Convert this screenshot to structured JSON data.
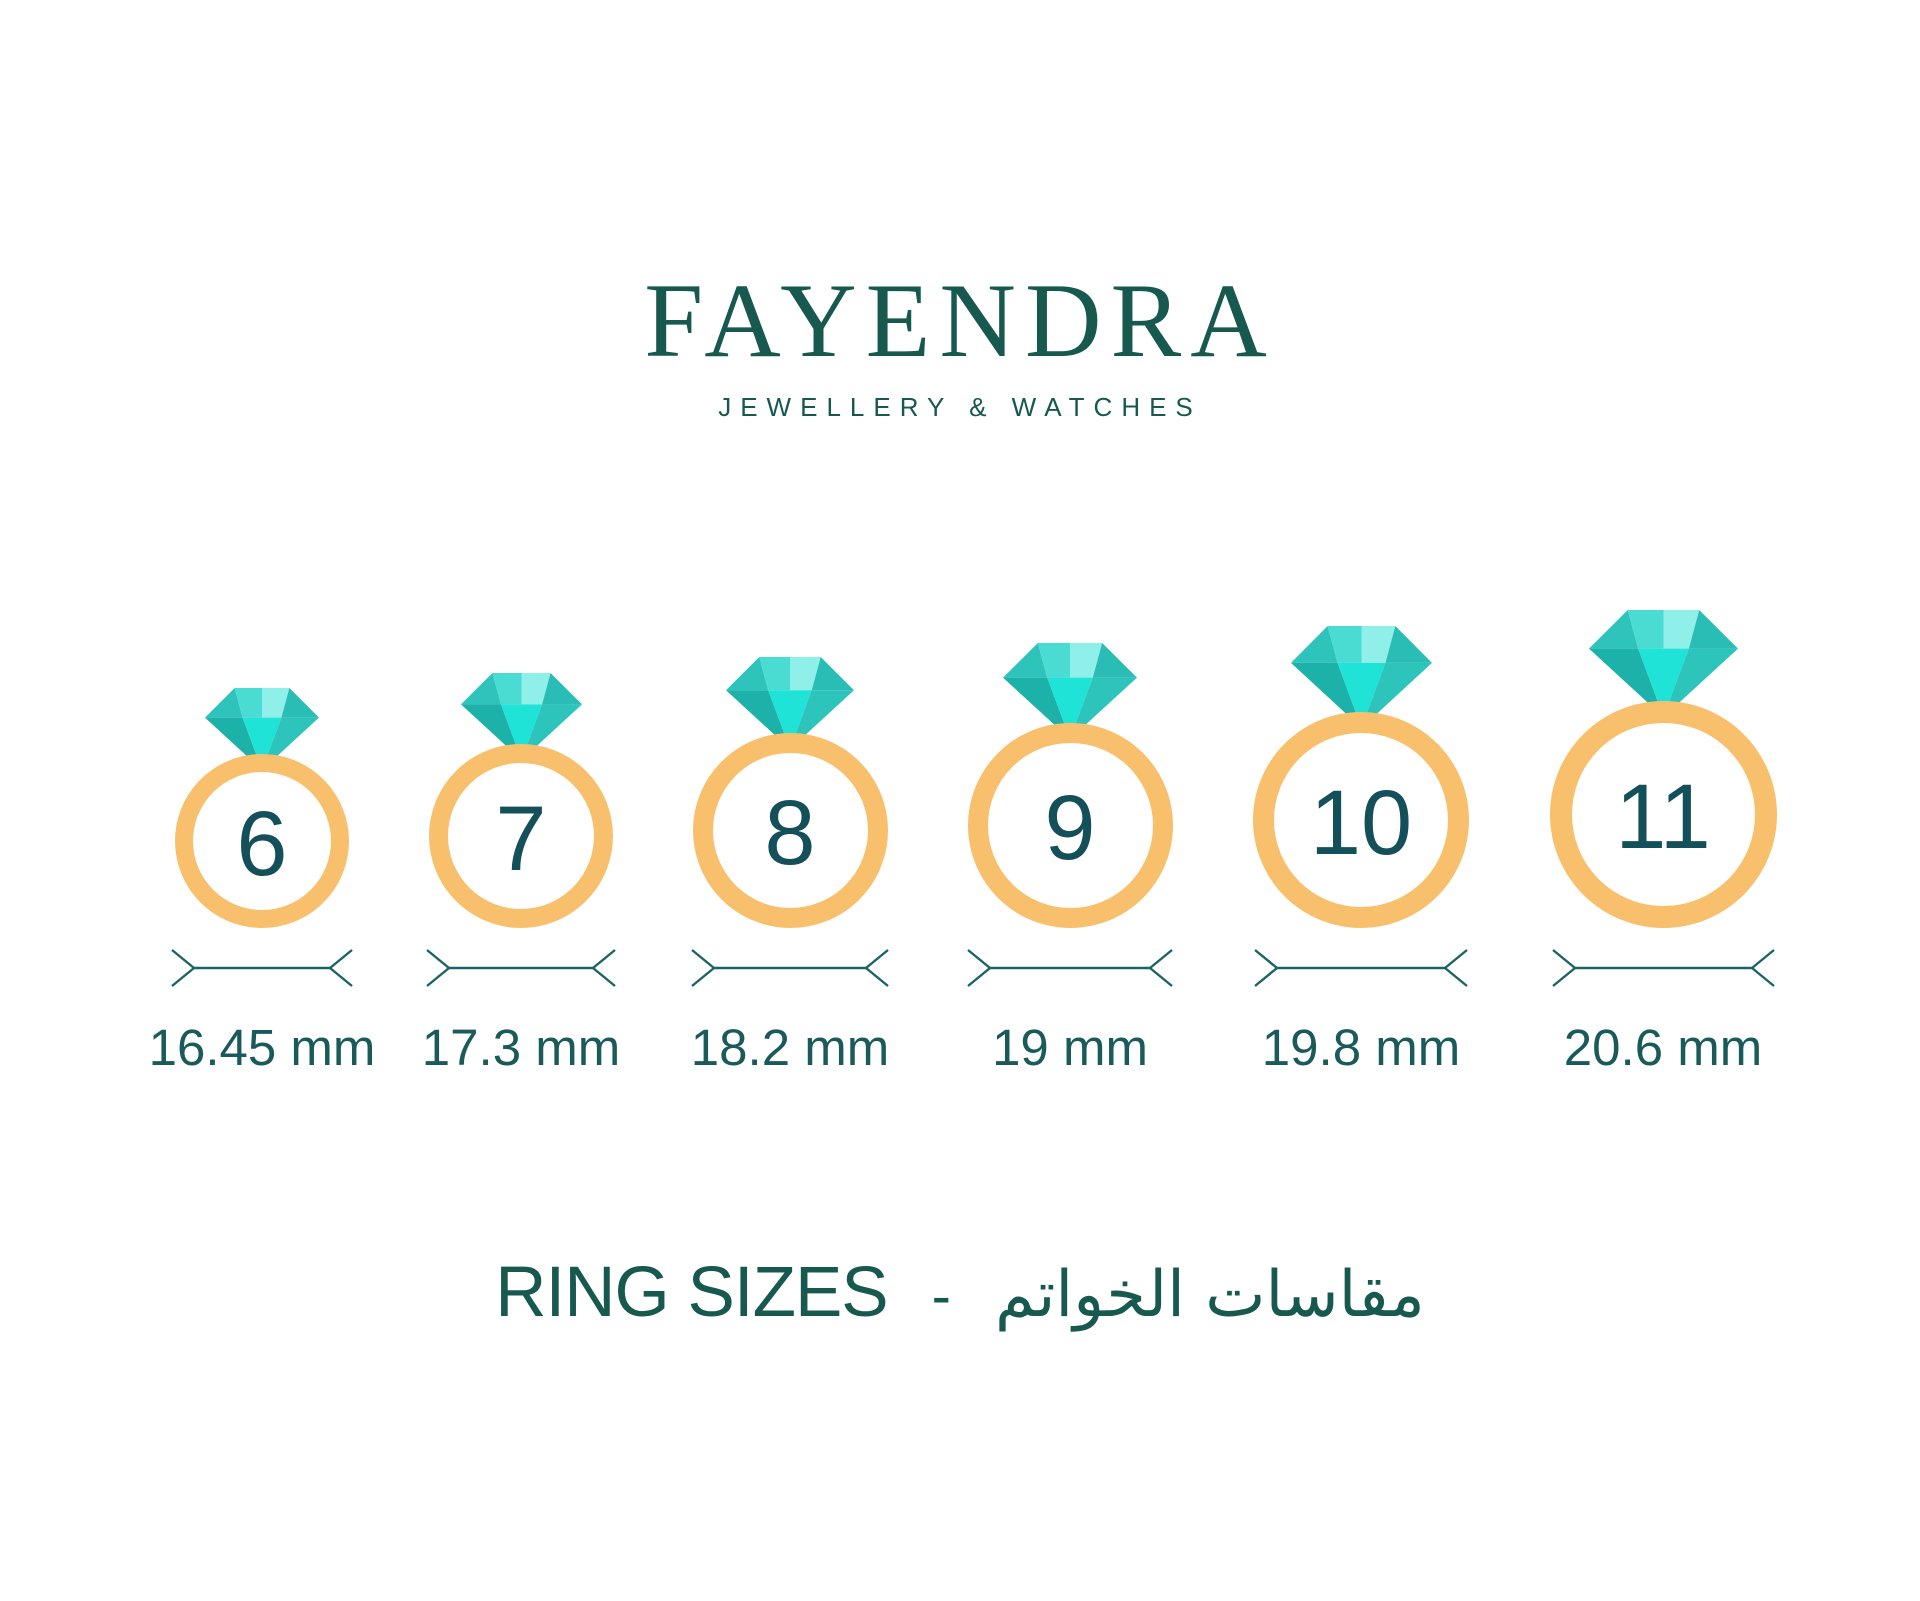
{
  "brand": {
    "name": "FAYENDRA",
    "tagline": "JEWELLERY & WATCHES"
  },
  "rings": [
    {
      "size": "6",
      "diameter": "16.45 mm"
    },
    {
      "size": "7",
      "diameter": "17.3 mm"
    },
    {
      "size": "8",
      "diameter": "18.2 mm"
    },
    {
      "size": "9",
      "diameter": "19 mm"
    },
    {
      "size": "10",
      "diameter": "19.8 mm"
    },
    {
      "size": "11",
      "diameter": "20.6 mm"
    }
  ],
  "footer": {
    "title_en": "RING SIZES",
    "separator": "-",
    "title_ar": "مقاسات الخواتم"
  },
  "colors": {
    "brand_teal": "#17594F",
    "number_teal": "#14505A",
    "label_teal": "#1A5A5A",
    "dimension_line": "#1C6363",
    "band_orange": "#F8C06C",
    "diamond_facets": [
      "#2FC4BB",
      "#4ADCD3",
      "#8FF0E9",
      "#29BDB5",
      "#1CB1A9",
      "#1FE3D7",
      "#2CC4BB"
    ]
  },
  "icons": {
    "diamond": "diamond-icon",
    "dimension_arrow": "dimension-arrow-icon"
  }
}
